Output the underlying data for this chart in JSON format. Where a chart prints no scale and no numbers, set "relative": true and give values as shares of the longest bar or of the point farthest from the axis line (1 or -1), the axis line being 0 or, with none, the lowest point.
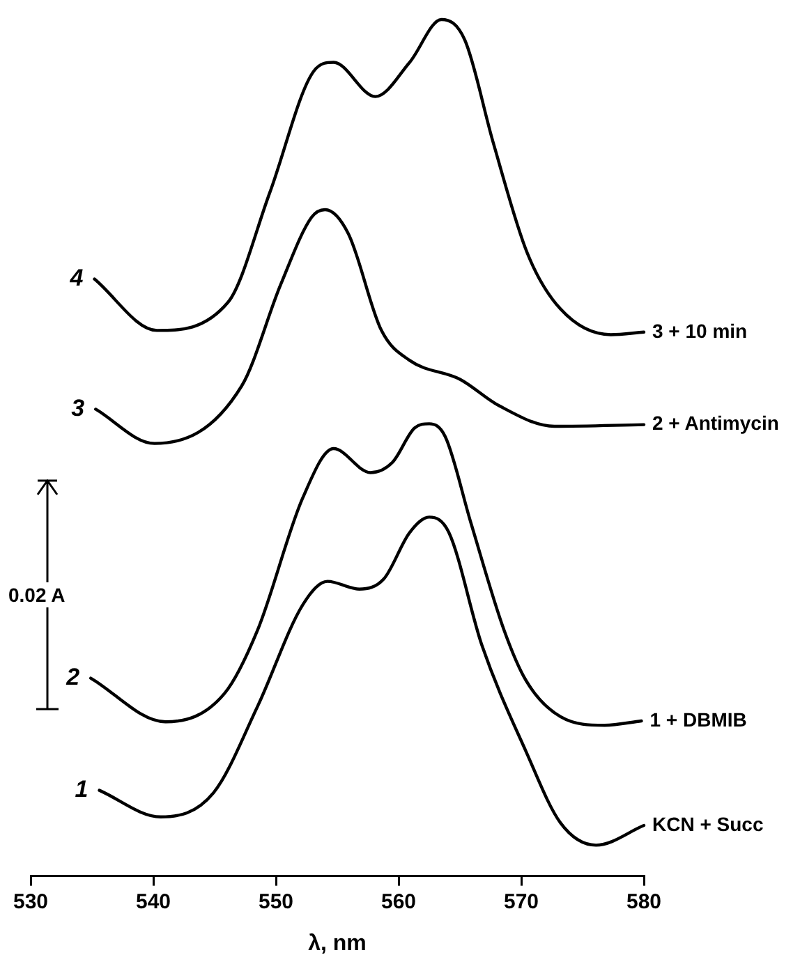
{
  "chart_data": {
    "type": "line",
    "relative": true,
    "xlabel": "λ, nm",
    "xlim": [
      530,
      580
    ],
    "xticks": [
      530,
      540,
      550,
      560,
      570,
      580
    ],
    "grid": false,
    "legend": false,
    "marker": "none",
    "line_style": "solid",
    "series": [
      {
        "name": "KCN + Succ",
        "color": "#000000",
        "x": [
          535.6,
          540.6,
          544.9,
          548.5,
          552.2,
          554.2,
          556.8,
          558.8,
          560.9,
          562.5,
          564.1,
          566.8,
          570.4,
          573.2,
          576.1,
          580
        ],
        "values": [
          0.1,
          0.069,
          0.097,
          0.198,
          0.317,
          0.344,
          0.335,
          0.347,
          0.401,
          0.419,
          0.401,
          0.269,
          0.145,
          0.062,
          0.036,
          0.059
        ]
      },
      {
        "name": "1 + DBMIB",
        "color": "#000000",
        "x": [
          534.9,
          541.0,
          545.8,
          548.5,
          552.2,
          554.7,
          557.7,
          559.5,
          561.3,
          562.5,
          563.8,
          565.9,
          568.6,
          570.4,
          573.2,
          576.8,
          579.8
        ],
        "values": [
          0.231,
          0.18,
          0.213,
          0.287,
          0.442,
          0.499,
          0.471,
          0.483,
          0.523,
          0.528,
          0.513,
          0.412,
          0.287,
          0.228,
          0.186,
          0.176,
          0.181
        ]
      },
      {
        "name": "2 + Antimycin",
        "color": "#000000",
        "x": [
          535.3,
          540.1,
          547.2,
          550.4,
          552.9,
          554.0,
          555.9,
          558.6,
          560.9,
          565.0,
          568.2,
          572.7,
          580.0
        ],
        "values": [
          0.545,
          0.505,
          0.572,
          0.691,
          0.769,
          0.778,
          0.75,
          0.637,
          0.602,
          0.58,
          0.549,
          0.525,
          0.527
        ]
      },
      {
        "name": "3 + 10 min",
        "color": "#000000",
        "x": [
          535.2,
          540.3,
          546.1,
          549.5,
          553.1,
          554.7,
          558.1,
          560.9,
          563.5,
          565.4,
          567.7,
          570.5,
          573.2,
          577.3,
          580.0
        ],
        "values": [
          0.697,
          0.637,
          0.67,
          0.798,
          0.94,
          0.95,
          0.91,
          0.95,
          1,
          0.976,
          0.857,
          0.727,
          0.662,
          0.632,
          0.635
        ]
      }
    ],
    "annotations": [
      {
        "text": "1",
        "x": 535.6,
        "y": 0.1
      },
      {
        "text": "2",
        "x": 534.9,
        "y": 0.231
      },
      {
        "text": "3",
        "x": 535.3,
        "y": 0.545
      },
      {
        "text": "4",
        "x": 535.2,
        "y": 0.697
      },
      "0.02 A"
    ]
  }
}
